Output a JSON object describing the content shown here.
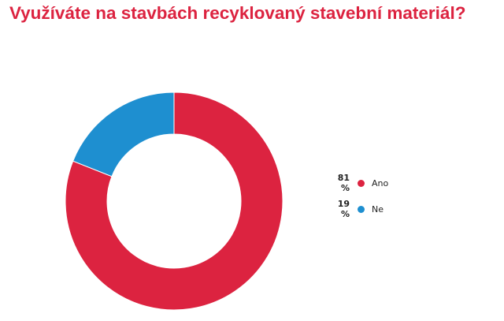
{
  "title": "Využíváte na stavbách recyklovaný stavební materiál?",
  "chart_data": {
    "type": "pie",
    "title": "Využíváte na stavbách recyklovaný stavební materiál?",
    "categories": [
      "Ano",
      "Ne"
    ],
    "values": [
      81,
      19
    ],
    "unit": "%",
    "colors": [
      "#dc2340",
      "#1e8fd0"
    ],
    "donut": true,
    "legend_position": "right",
    "legend": [
      {
        "pct": "81 %",
        "label": "Ano",
        "color": "#dc2340"
      },
      {
        "pct": "19 %",
        "label": "Ne",
        "color": "#1e8fd0"
      }
    ]
  }
}
